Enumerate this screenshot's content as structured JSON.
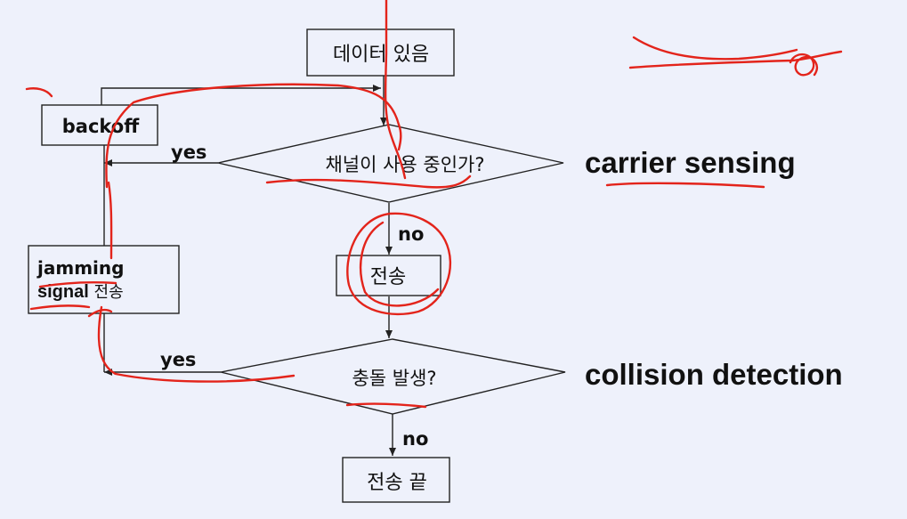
{
  "flowchart": {
    "start": "데이터 있음",
    "decision_channel": "채널이 사용 중인가?",
    "backoff": "backoff",
    "transmit": "전송",
    "decision_collision": "충돌 발생?",
    "jamming_line1": "jamming",
    "jamming_line2_bold": "signal",
    "jamming_line2_rest": " 전송",
    "end": "전송 끝",
    "yes_label_1": "yes",
    "no_label_1": "no",
    "yes_label_2": "yes",
    "no_label_2": "no"
  },
  "side_labels": {
    "carrier_sensing": "carrier sensing",
    "collision_detection": "collision detection"
  },
  "colors": {
    "background": "#eef1fb",
    "line": "#222222",
    "annotation": "#e3241b"
  }
}
